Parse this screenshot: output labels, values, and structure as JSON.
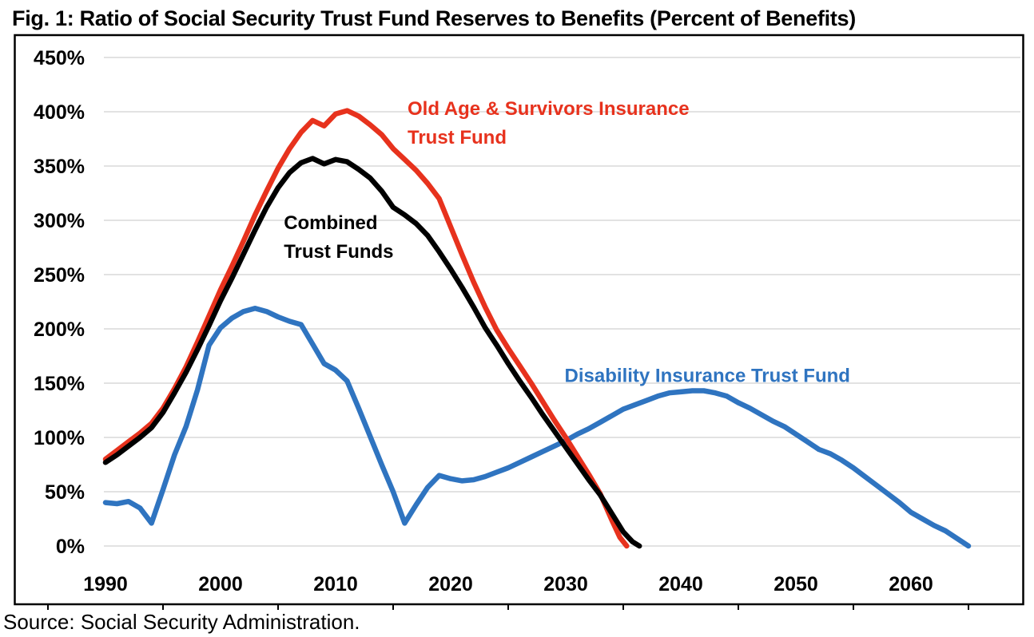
{
  "figure": {
    "title": "Fig. 1: Ratio of Social Security Trust Fund Reserves to Benefits (Percent of Benefits)",
    "source": "Source: Social Security Administration."
  },
  "chart_data": {
    "type": "line",
    "title": "Fig. 1: Ratio of Social Security Trust Fund Reserves to Benefits (Percent of Benefits)",
    "x_axis": {
      "tick_years": [
        1990,
        2000,
        2010,
        2020,
        2030,
        2040,
        2050,
        2060
      ],
      "range": [
        1985,
        2065
      ]
    },
    "y_axis": {
      "tick_values": [
        450,
        400,
        350,
        300,
        250,
        200,
        150,
        100,
        50,
        0
      ],
      "suffix": "%",
      "min": 0,
      "max": 450,
      "gridlines": true
    },
    "grid_color": "#D9D9D9",
    "series": [
      {
        "id": "di",
        "name": "Disability Insurance Trust Fund",
        "color": "#2F74C0",
        "points": [
          [
            1990,
            40
          ],
          [
            1991,
            39
          ],
          [
            1992,
            41
          ],
          [
            1993,
            35
          ],
          [
            1994,
            21
          ],
          [
            1995,
            52
          ],
          [
            1996,
            84
          ],
          [
            1997,
            110
          ],
          [
            1998,
            144
          ],
          [
            1999,
            185
          ],
          [
            2000,
            201
          ],
          [
            2001,
            210
          ],
          [
            2002,
            216
          ],
          [
            2003,
            219
          ],
          [
            2004,
            216
          ],
          [
            2005,
            211
          ],
          [
            2006,
            207
          ],
          [
            2007,
            204
          ],
          [
            2008,
            186
          ],
          [
            2009,
            168
          ],
          [
            2010,
            162
          ],
          [
            2011,
            152
          ],
          [
            2012,
            127
          ],
          [
            2013,
            101
          ],
          [
            2014,
            75
          ],
          [
            2015,
            50
          ],
          [
            2016,
            21
          ],
          [
            2017,
            38
          ],
          [
            2018,
            54
          ],
          [
            2019,
            65
          ],
          [
            2020,
            62
          ],
          [
            2021,
            60
          ],
          [
            2022,
            61
          ],
          [
            2023,
            64
          ],
          [
            2024,
            68
          ],
          [
            2025,
            72
          ],
          [
            2026,
            77
          ],
          [
            2027,
            82
          ],
          [
            2028,
            87
          ],
          [
            2029,
            92
          ],
          [
            2030,
            97
          ],
          [
            2031,
            103
          ],
          [
            2032,
            108
          ],
          [
            2033,
            114
          ],
          [
            2034,
            120
          ],
          [
            2035,
            126
          ],
          [
            2036,
            130
          ],
          [
            2037,
            134
          ],
          [
            2038,
            138
          ],
          [
            2039,
            141
          ],
          [
            2040,
            142
          ],
          [
            2041,
            143
          ],
          [
            2042,
            143
          ],
          [
            2043,
            141
          ],
          [
            2044,
            138
          ],
          [
            2045,
            132
          ],
          [
            2046,
            127
          ],
          [
            2047,
            121
          ],
          [
            2048,
            115
          ],
          [
            2049,
            110
          ],
          [
            2050,
            103
          ],
          [
            2051,
            96
          ],
          [
            2052,
            89
          ],
          [
            2053,
            85
          ],
          [
            2054,
            79
          ],
          [
            2055,
            72
          ],
          [
            2056,
            64
          ],
          [
            2057,
            56
          ],
          [
            2058,
            48
          ],
          [
            2059,
            40
          ],
          [
            2060,
            31
          ],
          [
            2061,
            25
          ],
          [
            2062,
            19
          ],
          [
            2063,
            14
          ],
          [
            2064,
            7
          ],
          [
            2065,
            0
          ]
        ]
      },
      {
        "id": "oasi",
        "name": "Old Age & Survivors Insurance Trust Fund",
        "color": "#E7321D",
        "points": [
          [
            1990,
            80
          ],
          [
            1991,
            88
          ],
          [
            1992,
            96
          ],
          [
            1993,
            104
          ],
          [
            1994,
            113
          ],
          [
            1995,
            127
          ],
          [
            1996,
            145
          ],
          [
            1997,
            165
          ],
          [
            1998,
            188
          ],
          [
            1999,
            212
          ],
          [
            2000,
            236
          ],
          [
            2001,
            258
          ],
          [
            2002,
            281
          ],
          [
            2003,
            305
          ],
          [
            2004,
            327
          ],
          [
            2005,
            348
          ],
          [
            2006,
            366
          ],
          [
            2007,
            381
          ],
          [
            2008,
            392
          ],
          [
            2009,
            387
          ],
          [
            2010,
            398
          ],
          [
            2011,
            401
          ],
          [
            2012,
            396
          ],
          [
            2013,
            388
          ],
          [
            2014,
            379
          ],
          [
            2015,
            366
          ],
          [
            2016,
            356
          ],
          [
            2017,
            346
          ],
          [
            2018,
            334
          ],
          [
            2019,
            320
          ],
          [
            2020,
            294
          ],
          [
            2021,
            268
          ],
          [
            2022,
            243
          ],
          [
            2023,
            220
          ],
          [
            2024,
            199
          ],
          [
            2025,
            182
          ],
          [
            2026,
            166
          ],
          [
            2027,
            150
          ],
          [
            2028,
            133
          ],
          [
            2029,
            116
          ],
          [
            2030,
            100
          ],
          [
            2031,
            83
          ],
          [
            2032,
            66
          ],
          [
            2033,
            48
          ],
          [
            2034,
            24
          ],
          [
            2034.7,
            8
          ],
          [
            2035.3,
            0
          ]
        ]
      },
      {
        "id": "combined",
        "name": "Combined Trust Funds",
        "color": "#000000",
        "points": [
          [
            1990,
            77
          ],
          [
            1991,
            84
          ],
          [
            1992,
            92
          ],
          [
            1993,
            100
          ],
          [
            1994,
            109
          ],
          [
            1995,
            123
          ],
          [
            1996,
            141
          ],
          [
            1997,
            160
          ],
          [
            1998,
            181
          ],
          [
            1999,
            203
          ],
          [
            2000,
            226
          ],
          [
            2001,
            247
          ],
          [
            2002,
            269
          ],
          [
            2003,
            291
          ],
          [
            2004,
            312
          ],
          [
            2005,
            330
          ],
          [
            2006,
            344
          ],
          [
            2007,
            353
          ],
          [
            2008,
            357
          ],
          [
            2009,
            352
          ],
          [
            2010,
            356
          ],
          [
            2011,
            354
          ],
          [
            2012,
            347
          ],
          [
            2013,
            339
          ],
          [
            2014,
            327
          ],
          [
            2015,
            312
          ],
          [
            2016,
            305
          ],
          [
            2017,
            297
          ],
          [
            2018,
            286
          ],
          [
            2019,
            271
          ],
          [
            2020,
            255
          ],
          [
            2021,
            238
          ],
          [
            2022,
            220
          ],
          [
            2023,
            201
          ],
          [
            2024,
            185
          ],
          [
            2025,
            168
          ],
          [
            2026,
            152
          ],
          [
            2027,
            137
          ],
          [
            2028,
            121
          ],
          [
            2029,
            106
          ],
          [
            2030,
            91
          ],
          [
            2031,
            76
          ],
          [
            2032,
            61
          ],
          [
            2033,
            47
          ],
          [
            2034,
            30
          ],
          [
            2035,
            13
          ],
          [
            2035.8,
            4
          ],
          [
            2036.4,
            0
          ]
        ]
      }
    ],
    "annotations": [
      {
        "id": "oasi",
        "text_lines": [
          "Old Age & Survivors Insurance",
          "Trust Fund"
        ],
        "color": "#E7321D",
        "anchor_year": 2016.25,
        "anchor_value": 397
      },
      {
        "id": "combined",
        "text_lines": [
          "Combined",
          "Trust Funds"
        ],
        "color": "#000000",
        "anchor_year": 2005.5,
        "anchor_value": 292
      },
      {
        "id": "di",
        "text_lines": [
          "Disability Insurance Trust Fund"
        ],
        "color": "#2F74C0",
        "anchor_year": 2029.9,
        "anchor_value": 151
      }
    ],
    "legend_position": "inline-labels"
  }
}
